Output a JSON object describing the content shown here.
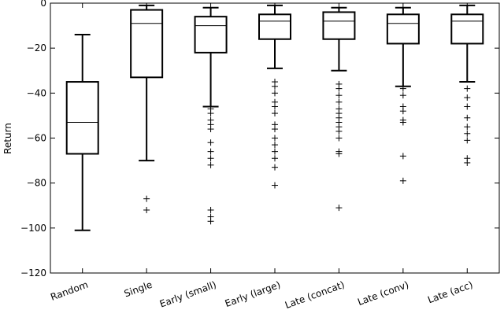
{
  "chart_data": {
    "type": "box",
    "title": "",
    "xlabel": "",
    "ylabel": "Return",
    "ylim": [
      -120,
      0
    ],
    "yticks": [
      0,
      -20,
      -40,
      -60,
      -80,
      -100,
      -120
    ],
    "ytick_labels": [
      "0",
      "−20",
      "−40",
      "−60",
      "−80",
      "−100",
      "−120"
    ],
    "categories": [
      "Random",
      "Single",
      "Early (small)",
      "Early (large)",
      "Late (concat)",
      "Late (conv)",
      "Late (acc)"
    ],
    "boxes": [
      {
        "name": "Random",
        "whisker_low": -101,
        "q1": -67,
        "median": -53,
        "q3": -35,
        "whisker_high": -14,
        "outliers": []
      },
      {
        "name": "Single",
        "whisker_low": -70,
        "q1": -33,
        "median": -9,
        "q3": -3,
        "whisker_high": -1,
        "outliers": [
          -87,
          -92
        ]
      },
      {
        "name": "Early (small)",
        "whisker_low": -46,
        "q1": -22,
        "median": -10,
        "q3": -6,
        "whisker_high": -2,
        "outliers": [
          -47,
          -49,
          -52,
          -54,
          -56,
          -62,
          -66,
          -69,
          -72,
          -92,
          -95,
          -97
        ]
      },
      {
        "name": "Early (large)",
        "whisker_low": -29,
        "q1": -16,
        "median": -8,
        "q3": -5,
        "whisker_high": -1,
        "outliers": [
          -35,
          -37,
          -40,
          -44,
          -46,
          -49,
          -54,
          -56,
          -60,
          -63,
          -66,
          -69,
          -73,
          -81
        ]
      },
      {
        "name": "Late (concat)",
        "whisker_low": -30,
        "q1": -16,
        "median": -8,
        "q3": -4,
        "whisker_high": -2,
        "outliers": [
          -36,
          -38,
          -41,
          -44,
          -47,
          -49,
          -51,
          -53,
          -55,
          -57,
          -60,
          -66,
          -67,
          -91
        ]
      },
      {
        "name": "Late (conv)",
        "whisker_low": -37,
        "q1": -18,
        "median": -9,
        "q3": -5,
        "whisker_high": -2,
        "outliers": [
          -38,
          -41,
          -46,
          -48,
          -52,
          -53,
          -68,
          -79
        ]
      },
      {
        "name": "Late (acc)",
        "whisker_low": -35,
        "q1": -18,
        "median": -8,
        "q3": -5,
        "whisker_high": -1,
        "outliers": [
          -38,
          -42,
          -46,
          -51,
          -55,
          -58,
          -61,
          -69,
          -71
        ]
      }
    ],
    "grid": false,
    "colors": {
      "box": "#000000",
      "median": "#000000",
      "background": "#ffffff"
    }
  }
}
